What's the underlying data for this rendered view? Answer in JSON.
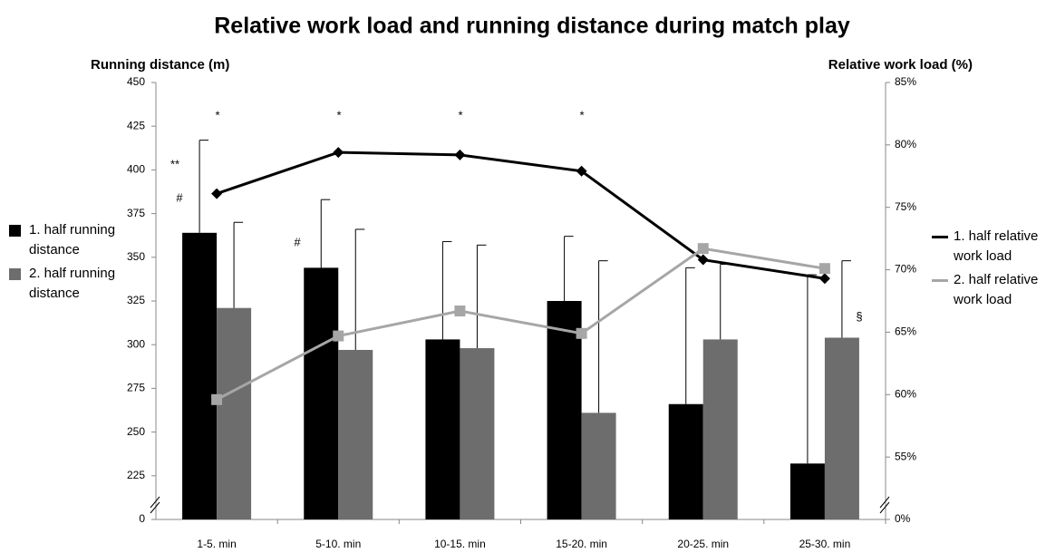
{
  "chart_data": {
    "type": "bar_line",
    "title": "Relative work load and running distance during match play",
    "y_label": "Running distance (m)",
    "y2_label": "Relative work load (%)",
    "categories": [
      "1-5. min",
      "5-10. min",
      "10-15. min",
      "15-20. min",
      "20-25. min",
      "25-30. min"
    ],
    "series": [
      {
        "name": "1. half running distance",
        "type": "bar",
        "color": "#000000",
        "values": [
          364,
          344,
          303,
          325,
          266,
          232
        ],
        "errors": [
          53,
          39,
          56,
          37,
          78,
          108
        ]
      },
      {
        "name": "2. half running distance",
        "type": "bar",
        "color": "#6d6d6d",
        "values": [
          321,
          297,
          298,
          261,
          303,
          304
        ],
        "errors": [
          49,
          69,
          59,
          87,
          43,
          44
        ]
      },
      {
        "name": "1. half relative work load",
        "type": "line",
        "axis": "y2",
        "color": "#000000",
        "marker": "diamond",
        "values": [
          76.1,
          79.4,
          79.2,
          77.9,
          70.8,
          69.3
        ]
      },
      {
        "name": "2. half relative work load",
        "type": "line",
        "axis": "y2",
        "color": "#a6a6a6",
        "marker": "square",
        "values": [
          59.6,
          64.7,
          66.7,
          64.9,
          71.7,
          70.1
        ]
      }
    ],
    "ylim": [
      0,
      450
    ],
    "yticks": [
      0,
      225,
      250,
      275,
      300,
      325,
      350,
      375,
      400,
      425,
      450
    ],
    "y2lim": [
      0,
      85
    ],
    "y2ticks": [
      {
        "value": 0,
        "label": "0%"
      },
      {
        "value": 55,
        "label": "55%"
      },
      {
        "value": 60,
        "label": "60%"
      },
      {
        "value": 65,
        "label": "65%"
      },
      {
        "value": 70,
        "label": "70%"
      },
      {
        "value": 75,
        "label": "75%"
      },
      {
        "value": 80,
        "label": "80%"
      },
      {
        "value": 85,
        "label": "85%"
      }
    ],
    "axis_break": true,
    "grid": false,
    "annotations": [
      "*",
      "*",
      "*",
      "*",
      "**",
      "#",
      "#",
      "§"
    ]
  }
}
